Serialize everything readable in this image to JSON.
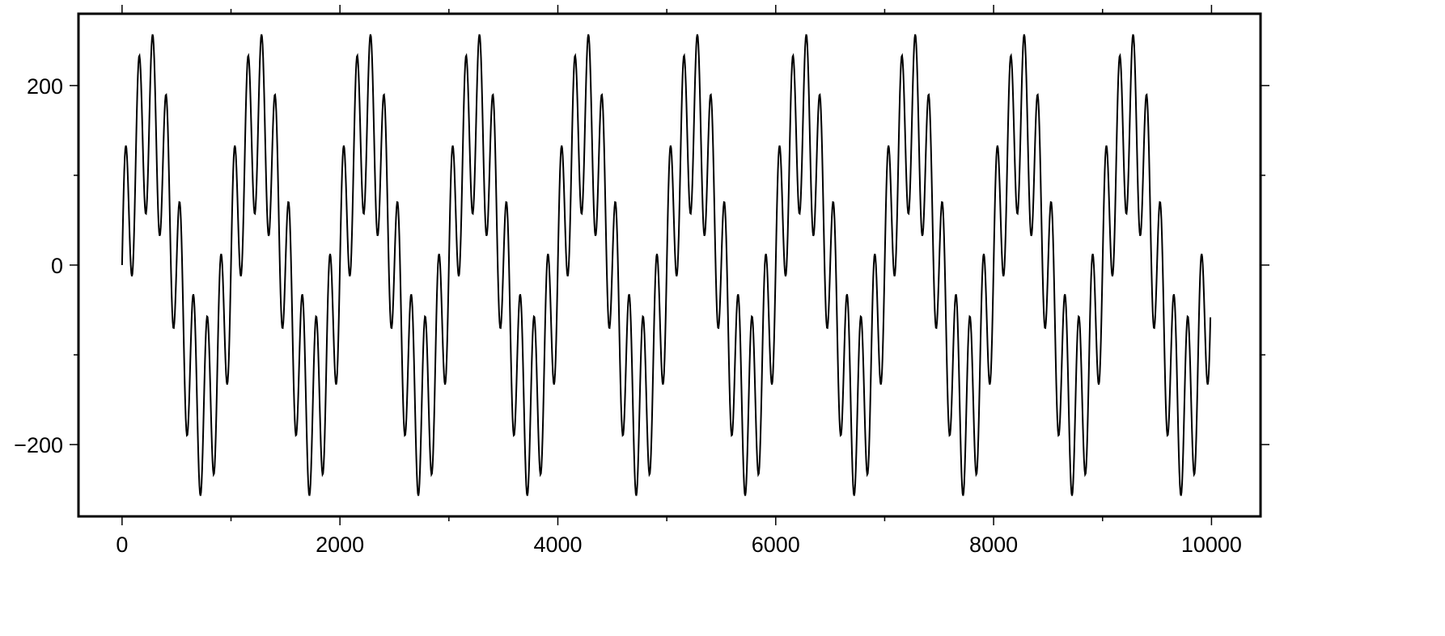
{
  "chart_data": {
    "type": "line",
    "title": "",
    "xlabel": "",
    "ylabel": "",
    "xlim": [
      -400,
      10450
    ],
    "ylim": [
      -280,
      280
    ],
    "grid": false,
    "x_major_ticks": [
      0,
      2000,
      4000,
      6000,
      8000,
      10000
    ],
    "x_tick_labels": [
      "0",
      "2000",
      "4000",
      "6000",
      "8000",
      "10000"
    ],
    "x_minor_ticks": [
      1000,
      3000,
      5000,
      7000,
      9000
    ],
    "y_major_ticks": [
      -200,
      0,
      200
    ],
    "y_tick_labels": [
      "−200",
      "0",
      "200"
    ],
    "y_minor_ticks": [
      -100,
      100
    ],
    "series": [
      {
        "x_range": [
          0,
          9990
        ],
        "sample_step": 5,
        "components": [
          {
            "kind": "sine",
            "amplitude": 160,
            "period": 1000
          },
          {
            "kind": "sine",
            "amplitude": 100,
            "period": 125
          }
        ],
        "color": "#000000"
      }
    ]
  }
}
